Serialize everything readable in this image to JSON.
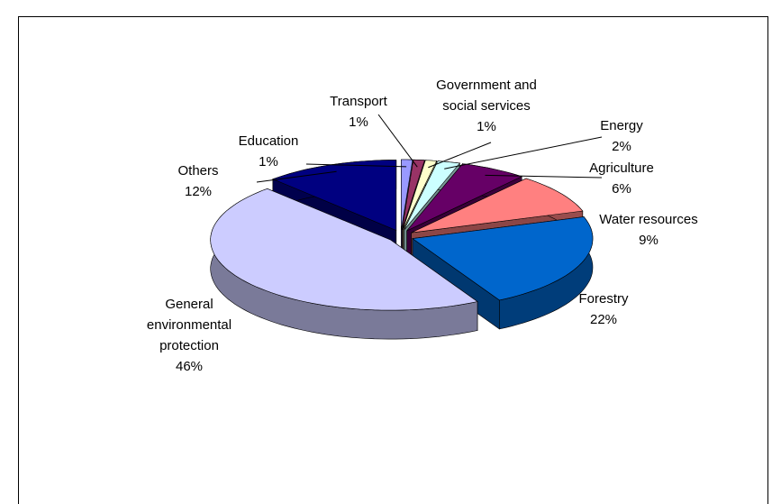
{
  "chart_data": {
    "type": "pie",
    "categories": [
      "Education",
      "Transport",
      "Government and social services",
      "Energy",
      "Agriculture",
      "Water resources",
      "Forestry",
      "General environmental protection",
      "Others"
    ],
    "values": [
      1,
      1,
      1,
      2,
      6,
      9,
      22,
      46,
      12
    ],
    "value_labels": [
      "1%",
      "1%",
      "1%",
      "2%",
      "6%",
      "9%",
      "22%",
      "46%",
      "12%"
    ],
    "colors": [
      "#9999ff",
      "#993366",
      "#ffffcc",
      "#ccffff",
      "#660066",
      "#ff8080",
      "#0066cc",
      "#ccccff",
      "#000080"
    ]
  }
}
